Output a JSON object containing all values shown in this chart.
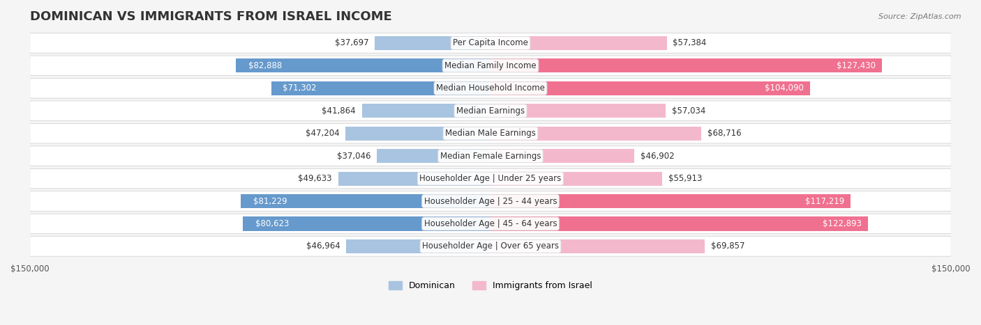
{
  "title": "DOMINICAN VS IMMIGRANTS FROM ISRAEL INCOME",
  "source": "Source: ZipAtlas.com",
  "categories": [
    "Per Capita Income",
    "Median Family Income",
    "Median Household Income",
    "Median Earnings",
    "Median Male Earnings",
    "Median Female Earnings",
    "Householder Age | Under 25 years",
    "Householder Age | 25 - 44 years",
    "Householder Age | 45 - 64 years",
    "Householder Age | Over 65 years"
  ],
  "dominican": [
    37697,
    82888,
    71302,
    41864,
    47204,
    37046,
    49633,
    81229,
    80623,
    46964
  ],
  "israel": [
    57384,
    127430,
    104090,
    57034,
    68716,
    46902,
    55913,
    117219,
    122893,
    69857
  ],
  "dominican_color_light": "#a8c4e0",
  "dominican_color_dark": "#6699cc",
  "israel_color_light": "#f4b8cc",
  "israel_color_dark": "#f07090",
  "max_val": 150000,
  "bg_color": "#f5f5f5",
  "bar_bg_color": "#ffffff",
  "label_bg_color": "#ffffff",
  "label_font_size": 8.5,
  "value_font_size": 8.5,
  "title_font_size": 13,
  "legend_font_size": 9,
  "axis_label_font_size": 8.5
}
